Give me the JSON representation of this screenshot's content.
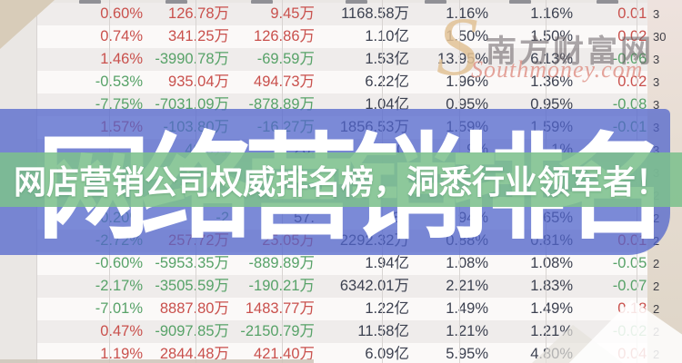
{
  "banner": {
    "headline": "网店营销公司权威排名榜，洞悉行业领军者！",
    "background_text": "网络营销排名"
  },
  "brand": {
    "initial": "S",
    "name": "南方财富网",
    "script": "Southmoney.com"
  },
  "colors": {
    "up_red": "#c9504c",
    "down_green": "#57a268",
    "neutral_dark": "#3c4150",
    "overlay_blue": "rgba(80,100,204,0.75)",
    "band_green": "rgba(125,192,141,0.88)",
    "background_beige": "#dbd2c4"
  },
  "table": {
    "columns": [
      "change_pct",
      "net_inflow_main",
      "net_inflow_retail",
      "turnover",
      "ratio_1",
      "ratio_2",
      "ratio_3",
      "side_cropped"
    ],
    "rows": [
      {
        "cells": [
          {
            "t": "0.60%",
            "k": "up"
          },
          {
            "t": "126.78万",
            "k": "up"
          },
          {
            "t": "9.45万",
            "k": "up"
          },
          {
            "t": "1168.58万",
            "k": "neutral"
          },
          {
            "t": "1.16%",
            "k": "neutral"
          },
          {
            "t": "1.16%",
            "k": "neutral"
          },
          {
            "t": "0.01%",
            "k": "up"
          }
        ],
        "side": "3"
      },
      {
        "cells": [
          {
            "t": "0.74%",
            "k": "up"
          },
          {
            "t": "341.25万",
            "k": "up"
          },
          {
            "t": "126.86万",
            "k": "up"
          },
          {
            "t": "1.10亿",
            "k": "neutral"
          },
          {
            "t": "1.50%",
            "k": "neutral"
          },
          {
            "t": "1.50%",
            "k": "neutral"
          },
          {
            "t": "0.02%",
            "k": "up"
          }
        ],
        "side": "30"
      },
      {
        "cells": [
          {
            "t": "1.46%",
            "k": "up"
          },
          {
            "t": "-3990.78万",
            "k": "down"
          },
          {
            "t": "-69.59万",
            "k": "down"
          },
          {
            "t": "1.53亿",
            "k": "neutral"
          },
          {
            "t": "13.95%",
            "k": "neutral"
          },
          {
            "t": "6.13%",
            "k": "neutral"
          },
          {
            "t": "-0.06%",
            "k": "down"
          }
        ],
        "side": "3"
      },
      {
        "cells": [
          {
            "t": "-0.53%",
            "k": "down"
          },
          {
            "t": "935.04万",
            "k": "up"
          },
          {
            "t": "494.73万",
            "k": "up"
          },
          {
            "t": "6.22亿",
            "k": "neutral"
          },
          {
            "t": "1.96%",
            "k": "neutral"
          },
          {
            "t": "1.36%",
            "k": "neutral"
          },
          {
            "t": "0.02%",
            "k": "up"
          }
        ],
        "side": "3"
      },
      {
        "cells": [
          {
            "t": "-7.75%",
            "k": "down"
          },
          {
            "t": "-7031.09万",
            "k": "down"
          },
          {
            "t": "-878.89万",
            "k": "down"
          },
          {
            "t": "1.04亿",
            "k": "neutral"
          },
          {
            "t": "0.95%",
            "k": "neutral"
          },
          {
            "t": "0.95%",
            "k": "neutral"
          },
          {
            "t": "-0.08%",
            "k": "down"
          }
        ],
        "side": "3"
      },
      {
        "cells": [
          {
            "t": "1.57%",
            "k": "up"
          },
          {
            "t": "-103.80万",
            "k": "down"
          },
          {
            "t": "-16.27万",
            "k": "down"
          },
          {
            "t": "1856.53万",
            "k": "neutral"
          },
          {
            "t": "1.59%",
            "k": "neutral"
          },
          {
            "t": "1.59%",
            "k": "neutral"
          },
          {
            "t": "-0.01%",
            "k": "down"
          }
        ],
        "side": "3"
      },
      {
        "cells": [
          {
            "t": "",
            "k": "neutral"
          },
          {
            "t": "40.9万",
            "k": "down"
          },
          {
            "t": "26.",
            "k": "neutral"
          },
          {
            "t": "40.",
            "k": "neutral"
          },
          {
            "t": "9%",
            "k": "neutral"
          },
          {
            "t": "1%",
            "k": "neutral"
          },
          {
            "t": "%",
            "k": "neutral"
          }
        ],
        "side": "3"
      },
      {
        "cells": [
          {
            "t": "",
            "k": "neutral"
          },
          {
            "t": "",
            "k": "neutral"
          },
          {
            "t": "",
            "k": "neutral"
          },
          {
            "t": "",
            "k": "neutral"
          },
          {
            "t": "",
            "k": "neutral"
          },
          {
            "t": "",
            "k": "neutral"
          },
          {
            "t": "",
            "k": "neutral"
          }
        ],
        "side": "3"
      },
      {
        "cells": [
          {
            "t": "",
            "k": "neutral"
          },
          {
            "t": "",
            "k": "neutral"
          },
          {
            "t": "",
            "k": "neutral"
          },
          {
            "t": "",
            "k": "neutral"
          },
          {
            "t": "",
            "k": "neutral"
          },
          {
            "t": "",
            "k": "neutral"
          },
          {
            "t": "",
            "k": "neutral"
          }
        ],
        "side": "2"
      },
      {
        "cells": [
          {
            "t": "0.20%",
            "k": "down"
          },
          {
            "t": "-2",
            "k": "down"
          },
          {
            "t": "57.",
            "k": "neutral"
          },
          {
            "t": "80",
            "k": "neutral"
          },
          {
            "t": "94%",
            "k": "neutral"
          },
          {
            "t": "65%",
            "k": "neutral"
          },
          {
            "t": "6",
            "k": "neutral"
          }
        ],
        "side": "2"
      },
      {
        "cells": [
          {
            "t": "-2.72%",
            "k": "down"
          },
          {
            "t": "257.72万",
            "k": "up"
          },
          {
            "t": "25.05万",
            "k": "up"
          },
          {
            "t": "2292.32万",
            "k": "neutral"
          },
          {
            "t": "0.88%",
            "k": "neutral"
          },
          {
            "t": "0.81%",
            "k": "neutral"
          },
          {
            "t": "0.01%",
            "k": "up"
          }
        ],
        "side": "2"
      },
      {
        "cells": [
          {
            "t": "-0.60%",
            "k": "down"
          },
          {
            "t": "-5953.35万",
            "k": "down"
          },
          {
            "t": "-889.89万",
            "k": "down"
          },
          {
            "t": "1.94亿",
            "k": "neutral"
          },
          {
            "t": "1.08%",
            "k": "neutral"
          },
          {
            "t": "1.08%",
            "k": "neutral"
          },
          {
            "t": "-0.05%",
            "k": "down"
          }
        ],
        "side": "2"
      },
      {
        "cells": [
          {
            "t": "-2.17%",
            "k": "down"
          },
          {
            "t": "-3505.59万",
            "k": "down"
          },
          {
            "t": "-190.21万",
            "k": "down"
          },
          {
            "t": "6342.01万",
            "k": "neutral"
          },
          {
            "t": "2.21%",
            "k": "neutral"
          },
          {
            "t": "1.83%",
            "k": "neutral"
          },
          {
            "t": "-0.07%",
            "k": "down"
          }
        ],
        "side": "2"
      },
      {
        "cells": [
          {
            "t": "-7.01%",
            "k": "down"
          },
          {
            "t": "8887.80万",
            "k": "up"
          },
          {
            "t": "1483.77万",
            "k": "up"
          },
          {
            "t": "1.22亿",
            "k": "neutral"
          },
          {
            "t": "1.49%",
            "k": "neutral"
          },
          {
            "t": "1.49%",
            "k": "neutral"
          },
          {
            "t": "0.18%",
            "k": "up"
          }
        ],
        "side": "2"
      },
      {
        "cells": [
          {
            "t": "0.47%",
            "k": "up"
          },
          {
            "t": "-9097.85万",
            "k": "down"
          },
          {
            "t": "-2150.79万",
            "k": "down"
          },
          {
            "t": "11.58亿",
            "k": "neutral"
          },
          {
            "t": "1.21%",
            "k": "neutral"
          },
          {
            "t": "1.21%",
            "k": "neutral"
          },
          {
            "t": "-0.02%",
            "k": "down"
          }
        ],
        "side": "2"
      },
      {
        "cells": [
          {
            "t": "1.19%",
            "k": "up"
          },
          {
            "t": "2844.48万",
            "k": "up"
          },
          {
            "t": "421.40万",
            "k": "up"
          },
          {
            "t": "6.09亿",
            "k": "neutral"
          },
          {
            "t": "5.95%",
            "k": "neutral"
          },
          {
            "t": "4.80%",
            "k": "neutral"
          },
          {
            "t": "0.04%",
            "k": "up"
          }
        ],
        "side": "2"
      }
    ]
  }
}
